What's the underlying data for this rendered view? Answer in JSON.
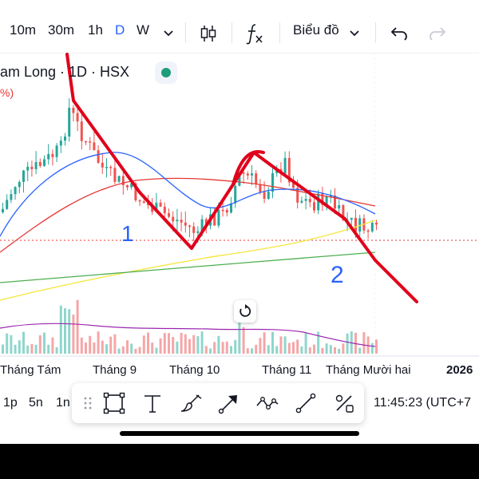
{
  "toolbar": {
    "intervals": [
      "10m",
      "30m",
      "1h",
      "D",
      "W"
    ],
    "active_interval": "D",
    "chart_type_label": "Biểu đồ"
  },
  "legend": {
    "symbol_title": "am Long · 1D · HSX",
    "sub": "%)"
  },
  "annotations": {
    "wave1": "1",
    "wave2": "2"
  },
  "xaxis": {
    "labels": [
      "Tháng Tám",
      "Tháng 9",
      "Tháng 10",
      "Tháng 11",
      "Tháng Mười hai",
      "2026"
    ]
  },
  "bottom": {
    "timeframes": [
      "1p",
      "5n",
      "1n"
    ],
    "clock": "11:45:23 (UTC+7"
  },
  "colors": {
    "up": "#26a69a",
    "down": "#ef5350",
    "ma_blue": "#2962ff",
    "ma_red": "#e53935",
    "ma_yellow": "#f5e642",
    "ma_green": "#4caf50",
    "volume_ma": "#9c27b0",
    "trendline": "#e0001b",
    "accent": "#2962ff"
  },
  "icons": {
    "chevron": "chevron-down-icon",
    "candles": "candles-icon",
    "indicators": "fx-icon",
    "undo": "undo-icon",
    "redo": "redo-icon",
    "reset": "reset-icon",
    "drawing_tools": [
      "drag-handle-icon",
      "rectangle-icon",
      "text-icon",
      "brush-icon",
      "arrow-icon",
      "path-icon",
      "line-icon",
      "extended-line-icon"
    ]
  }
}
